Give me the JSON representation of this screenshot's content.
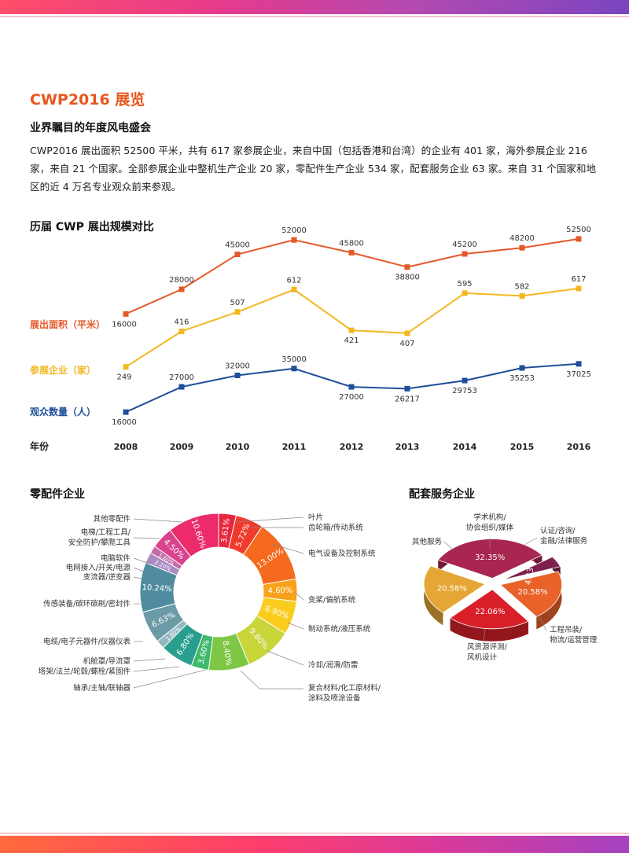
{
  "header": {
    "title": "CWP2016 展览",
    "subtitle": "业界瞩目的年度风电盛会",
    "paragraph": "CWP2016 展出面积 52500 平米，共有 617 家参展企业，来自中国（包括香港和台湾）的企业有 401 家，海外参展企业 216 家，来自 21 个国家。全部参展企业中整机生产企业 20 家，零配件生产企业 534 家，配套服务企业 63 家。来自 31 个国家和地区的近 4 万名专业观众前来参观。"
  },
  "colors": {
    "accent": "#e8571e",
    "area": "#e4592a",
    "exhibitors": "#f2b820",
    "visitors": "#1f4e9a"
  },
  "chart_data": [
    {
      "type": "line",
      "title": "历届 CWP 展出规模对比",
      "x_label": "年份",
      "x": [
        "2008",
        "2009",
        "2010",
        "2011",
        "2012",
        "2013",
        "2014",
        "2015",
        "2016"
      ],
      "series": [
        {
          "name": "展出面积（平米）",
          "color": "#e4592a",
          "values": [
            16000,
            28000,
            45000,
            52000,
            45800,
            38800,
            45200,
            48200,
            52500
          ]
        },
        {
          "name": "参展企业（家）",
          "color": "#f2b820",
          "values": [
            249,
            416,
            507,
            612,
            421,
            407,
            595,
            582,
            617
          ]
        },
        {
          "name": "观众数量（人）",
          "color": "#1f4e9a",
          "values": [
            16000,
            27000,
            32000,
            35000,
            27000,
            26217,
            29753,
            35253,
            37025
          ]
        }
      ]
    },
    {
      "type": "pie",
      "title": "零配件企业",
      "style": "donut",
      "slices": [
        {
          "label": "叶片",
          "value": 3.61,
          "text": "3.61%",
          "color": "#e8263f"
        },
        {
          "label": "齿轮箱/传动系统",
          "value": 5.72,
          "text": "5.72%",
          "color": "#f03a2c"
        },
        {
          "label": "电气设备及控制系统",
          "value": 13.0,
          "text": "13.00%",
          "color": "#f56a1e"
        },
        {
          "label": "变桨/偏航系统",
          "value": 4.6,
          "text": "4.60%",
          "color": "#f7a21a"
        },
        {
          "label": "制动系统/液压系统",
          "value": 6.9,
          "text": "6.90%",
          "color": "#f9cc1d"
        },
        {
          "label": "冷却/润滑/防雷",
          "value": 9.8,
          "text": "9.80%",
          "color": "#c8d63a"
        },
        {
          "label": "复合材料/化工原材料/涂料及喷涂设备",
          "value": 8.4,
          "text": "8.40%",
          "color": "#7dc744"
        },
        {
          "label": "轴承/主轴/联轴器",
          "value": 3.6,
          "text": "3.60%",
          "color": "#3eb86a"
        },
        {
          "label": "塔架/法兰/轮毂/螺栓/紧固件",
          "value": 6.8,
          "text": "6.80%",
          "color": "#2a9e8e"
        },
        {
          "label": "机舱罩/导流罩",
          "value": 1.8,
          "text": "1.80%",
          "color": "#96b7c1"
        },
        {
          "label": "电缆/电子元器件/仪器仪表",
          "value": 6.63,
          "text": "6.63%",
          "color": "#6c9ba8"
        },
        {
          "label": "传感装备/碳环碳刷/密封件",
          "value": 10.24,
          "text": "10.24%",
          "color": "#4f8c9f"
        },
        {
          "label": "变流器/逆变器",
          "value": 2.2,
          "text": "2.20%",
          "color": "#a98bc4"
        },
        {
          "label": "电网接入/开关/电源",
          "value": 1.6,
          "text": "1.60%",
          "color": "#c36aa8"
        },
        {
          "label": "电脑软件",
          "value": 4.5,
          "text": "4.50%",
          "color": "#d9428c"
        },
        {
          "label": "电梯/工程工具/安全防护/攀爬工具",
          "value": 10.6,
          "text": "10.60%",
          "color": "#ec2b6a"
        },
        {
          "label": "其他零配件",
          "value": 0.0,
          "text": "",
          "color": "#ec2b6a"
        }
      ]
    },
    {
      "type": "pie",
      "title": "配套服务企业",
      "style": "3d-exploded",
      "slices": [
        {
          "label": "认证/咨询/金融/法律服务",
          "value": 20.58,
          "text": "20.58%",
          "color": "#e8622a"
        },
        {
          "label": "工程吊装/物流/运营管理",
          "value": 22.06,
          "text": "22.06%",
          "color": "#d9202a"
        },
        {
          "label": "风资源评测/风机设计",
          "value": 20.58,
          "text": "20.58%",
          "color": "#e6a636"
        },
        {
          "label": "其他服务",
          "value": 32.35,
          "text": "32.35%",
          "color": "#a8264f"
        },
        {
          "label": "学术机构/协会组织/媒体",
          "value": 4.43,
          "text": "4.43%",
          "color": "#7e1f4d"
        }
      ]
    }
  ]
}
